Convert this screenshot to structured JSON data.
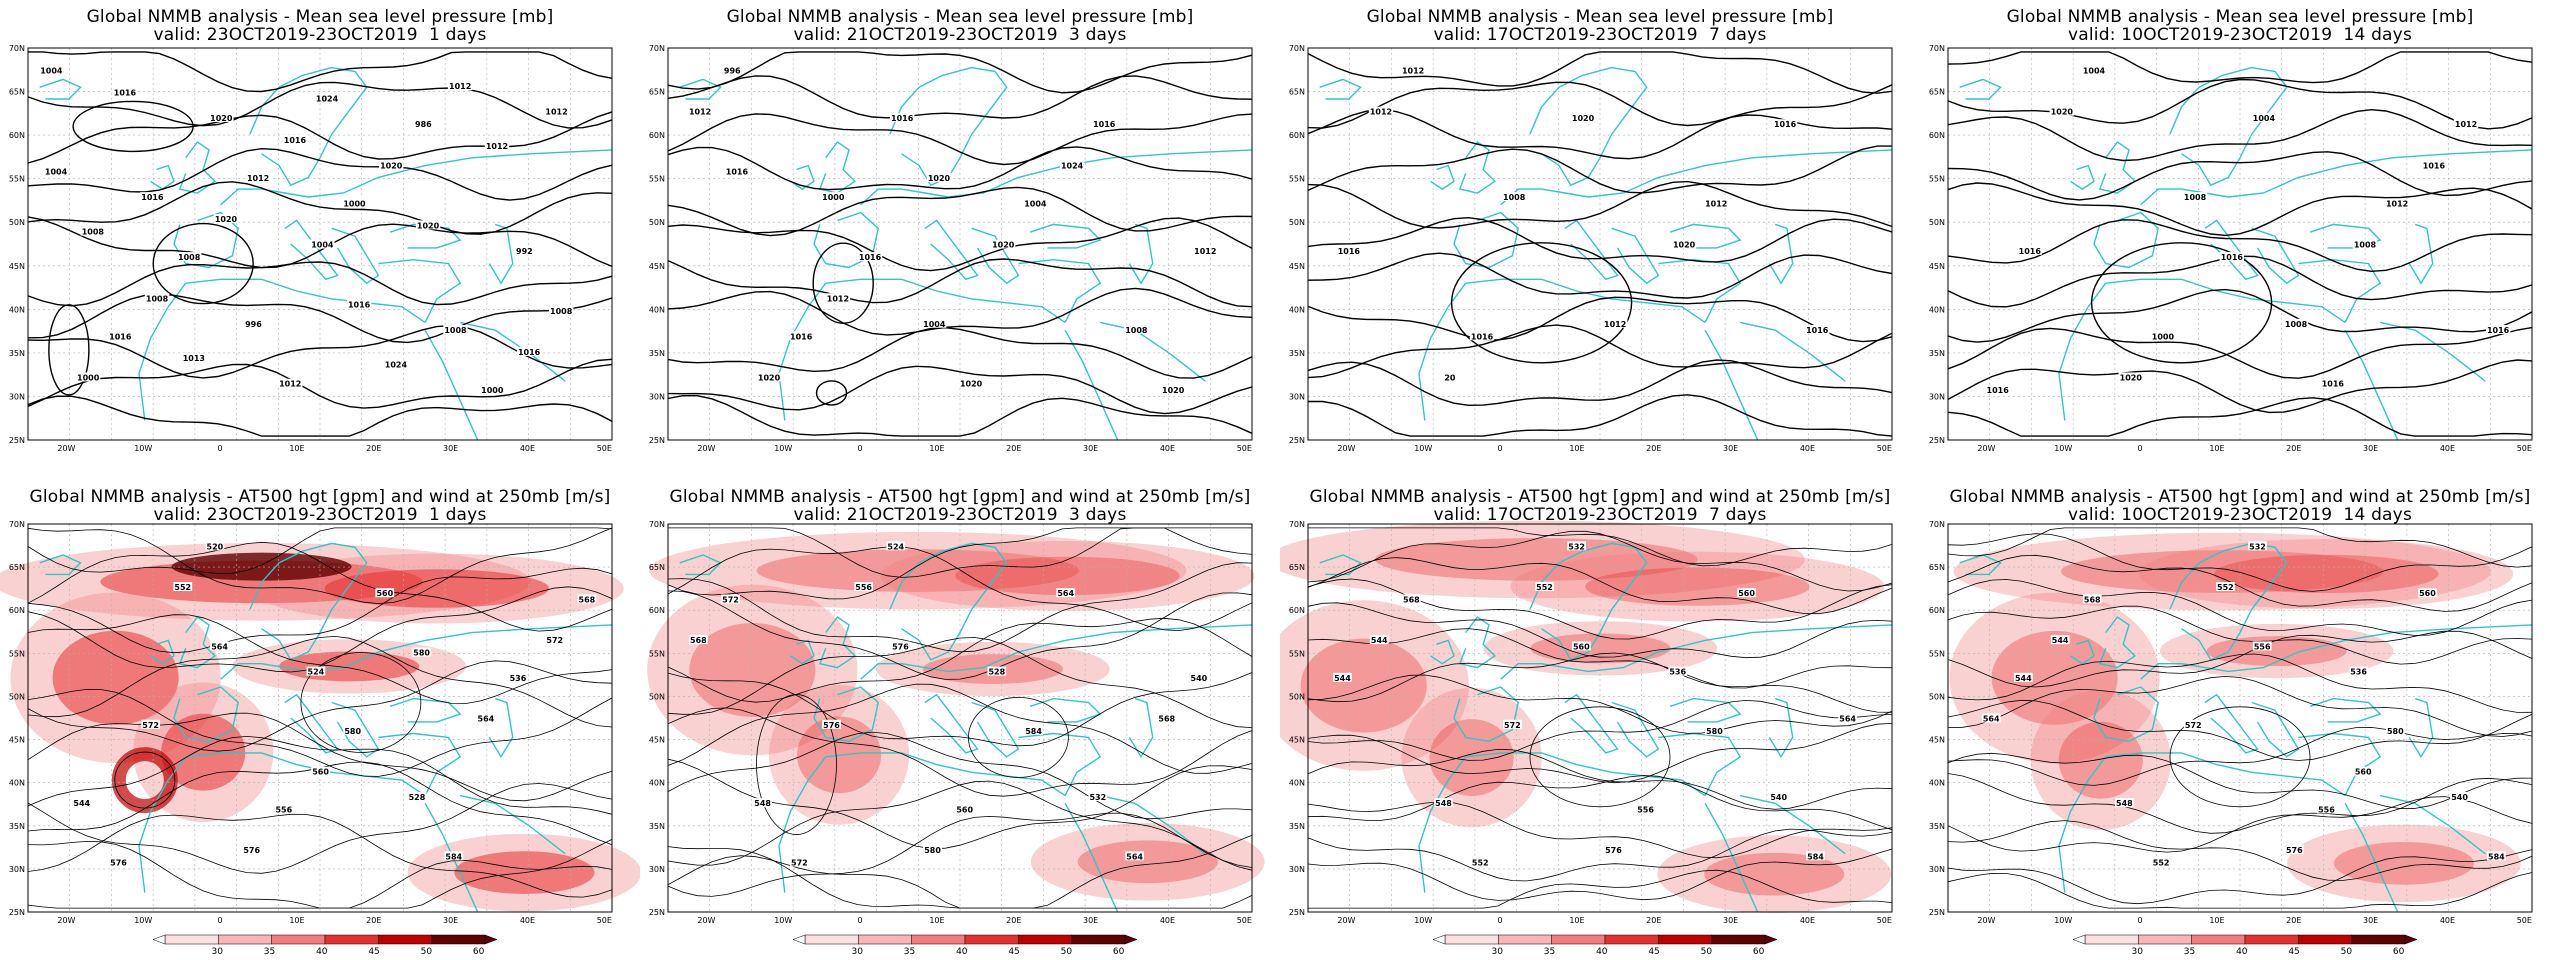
{
  "colors": {
    "coast": "#2fc6c8",
    "isobar": "#000000",
    "grid": "#b0b0b0",
    "wind_scale": [
      "#ffffff",
      "#fde0e0",
      "#f9b4b4",
      "#f27a7a",
      "#e63030",
      "#c00000",
      "#600000"
    ]
  },
  "axis_labels": {
    "lat": [
      "70N",
      "65N",
      "60N",
      "55N",
      "50N",
      "45N",
      "40N",
      "35N",
      "30N",
      "25N"
    ],
    "lon": [
      "20W",
      "10W",
      "0",
      "10E",
      "20E",
      "30E",
      "40E",
      "50E"
    ]
  },
  "colorbar": {
    "ticks": [
      "30",
      "35",
      "40",
      "45",
      "50",
      "60"
    ]
  },
  "panels": [
    {
      "id": "mslp-1d",
      "type": "mslp",
      "title": "Global NMMB analysis - Mean sea level pressure [mb]",
      "subtitle": "valid: 23OCT2019-23OCT2019  1 days",
      "labels": [
        "1004",
        "1016",
        "996",
        "1000",
        "1008",
        "1012",
        "1016",
        "1020",
        "1004",
        "986",
        "992",
        "1000",
        "1008",
        "1012",
        "1020",
        "1000",
        "1004",
        "1008",
        "1012",
        "1016",
        "1012",
        "1008",
        "1016",
        "1020",
        "1024",
        "1020",
        "1016",
        "1008",
        "1013",
        "1016",
        "1024",
        "1012"
      ]
    },
    {
      "id": "mslp-3d",
      "type": "mslp",
      "title": "Global NMMB analysis - Mean sea level pressure [mb]",
      "subtitle": "valid: 21OCT2019-23OCT2019  3 days",
      "labels": [
        "996",
        "1000",
        "1004",
        "1004",
        "1008",
        "1012",
        "1016",
        "1016",
        "1020",
        "1016",
        "1012",
        "1020",
        "1016",
        "1020",
        "1024",
        "1020",
        "1016",
        "1012",
        "1020"
      ]
    },
    {
      "id": "mslp-7d",
      "type": "mslp",
      "title": "Global NMMB analysis - Mean sea level pressure [mb]",
      "subtitle": "valid: 17OCT2019-23OCT2019  7 days",
      "labels": [
        "1012",
        "1008",
        "1012",
        "1012",
        "1016",
        "1012",
        "1016",
        "1020",
        "1020",
        "1016",
        "1016",
        "20"
      ]
    },
    {
      "id": "mslp-14d",
      "type": "mslp",
      "title": "Global NMMB analysis - Mean sea level pressure [mb]",
      "subtitle": "valid: 10OCT2019-23OCT2019  14 days",
      "labels": [
        "1004",
        "1008",
        "1008",
        "1012",
        "1016",
        "1020",
        "1000",
        "1004",
        "1008",
        "1012",
        "1016",
        "1020",
        "1016",
        "1016",
        "1016",
        "1016"
      ]
    },
    {
      "id": "z500-1d",
      "type": "z500",
      "title": "Global NMMB analysis - AT500 hgt [gpm] and wind at 250mb [m/s]",
      "subtitle": "valid: 23OCT2019-23OCT2019  1 days",
      "labels": [
        "520",
        "524",
        "528",
        "536",
        "544",
        "552",
        "556",
        "560",
        "564",
        "568",
        "572",
        "576",
        "580",
        "584",
        "572",
        "576",
        "564",
        "560",
        "580"
      ]
    },
    {
      "id": "z500-3d",
      "type": "z500",
      "title": "Global NMMB analysis - AT500 hgt [gpm] and wind at 250mb [m/s]",
      "subtitle": "valid: 21OCT2019-23OCT2019  3 days",
      "labels": [
        "524",
        "528",
        "532",
        "540",
        "548",
        "556",
        "560",
        "564",
        "568",
        "572",
        "576",
        "580",
        "584",
        "564",
        "568",
        "572",
        "576"
      ]
    },
    {
      "id": "z500-7d",
      "type": "z500",
      "title": "Global NMMB analysis - AT500 hgt [gpm] and wind at 250mb [m/s]",
      "subtitle": "valid: 17OCT2019-23OCT2019  7 days",
      "labels": [
        "532",
        "536",
        "540",
        "544",
        "548",
        "552",
        "556",
        "560",
        "564",
        "568",
        "572",
        "576",
        "580",
        "584",
        "544",
        "552",
        "560"
      ]
    },
    {
      "id": "z500-14d",
      "type": "z500",
      "title": "Global NMMB analysis - AT500 hgt [gpm] and wind at 250mb [m/s]",
      "subtitle": "valid: 10OCT2019-23OCT2019  14 days",
      "labels": [
        "532",
        "536",
        "540",
        "544",
        "548",
        "552",
        "556",
        "560",
        "564",
        "568",
        "572",
        "576",
        "580",
        "584",
        "544",
        "552",
        "556",
        "560"
      ]
    }
  ]
}
